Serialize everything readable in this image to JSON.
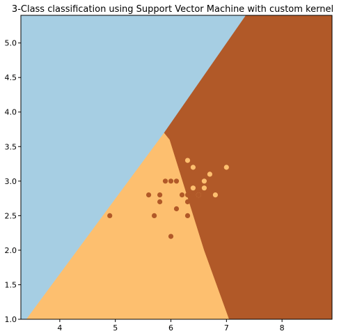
{
  "chart_data": {
    "type": "scatter",
    "title": "3-Class classification using Support Vector Machine with custom kernel",
    "xlabel": "",
    "ylabel": "",
    "xlim": [
      3.3,
      8.9
    ],
    "ylim": [
      1.0,
      5.4
    ],
    "x_ticks": [
      "4",
      "5",
      "6",
      "7",
      "8"
    ],
    "y_ticks": [
      "1.0",
      "1.5",
      "2.0",
      "2.5",
      "3.0",
      "3.5",
      "4.0",
      "4.5",
      "5.0"
    ],
    "grid": false,
    "legend": "none",
    "region_colors": {
      "class_0": "#a6cee3",
      "class_1": "#fdbf6f",
      "class_2": "#b15928"
    },
    "regions": [
      {
        "class": "class_0",
        "polygon": [
          [
            3.3,
            1.0
          ],
          [
            3.4,
            1.0
          ],
          [
            5.88,
            3.7
          ],
          [
            7.35,
            5.4
          ],
          [
            3.3,
            5.4
          ]
        ]
      },
      {
        "class": "class_1",
        "polygon": [
          [
            3.4,
            1.0
          ],
          [
            5.88,
            3.7
          ],
          [
            5.98,
            3.6
          ],
          [
            6.6,
            2.0
          ],
          [
            7.05,
            1.0
          ]
        ]
      },
      {
        "class": "class_2",
        "polygon": [
          [
            7.35,
            5.4
          ],
          [
            5.88,
            3.7
          ],
          [
            5.98,
            3.6
          ],
          [
            6.6,
            2.0
          ],
          [
            7.05,
            1.0
          ],
          [
            8.9,
            1.0
          ],
          [
            8.9,
            5.4
          ]
        ]
      }
    ],
    "series": [
      {
        "class": "class_1",
        "points": [
          [
            6.3,
            3.3
          ],
          [
            6.4,
            3.2
          ],
          [
            6.7,
            3.1
          ],
          [
            6.6,
            3.0
          ],
          [
            6.4,
            2.9
          ],
          [
            6.6,
            2.9
          ],
          [
            6.5,
            2.8
          ],
          [
            6.8,
            2.8
          ],
          [
            7.0,
            3.2
          ]
        ]
      },
      {
        "class": "class_2",
        "points": [
          [
            4.9,
            2.5
          ],
          [
            5.6,
            2.8
          ],
          [
            5.7,
            2.5
          ],
          [
            5.8,
            2.7
          ],
          [
            5.8,
            2.8
          ],
          [
            5.9,
            3.0
          ],
          [
            6.0,
            3.0
          ],
          [
            6.1,
            3.0
          ],
          [
            6.0,
            2.2
          ],
          [
            6.1,
            2.6
          ],
          [
            6.2,
            2.8
          ],
          [
            6.3,
            2.8
          ],
          [
            6.3,
            2.7
          ],
          [
            6.3,
            2.5
          ],
          [
            6.4,
            2.8
          ],
          [
            6.5,
            2.8
          ]
        ]
      }
    ]
  }
}
